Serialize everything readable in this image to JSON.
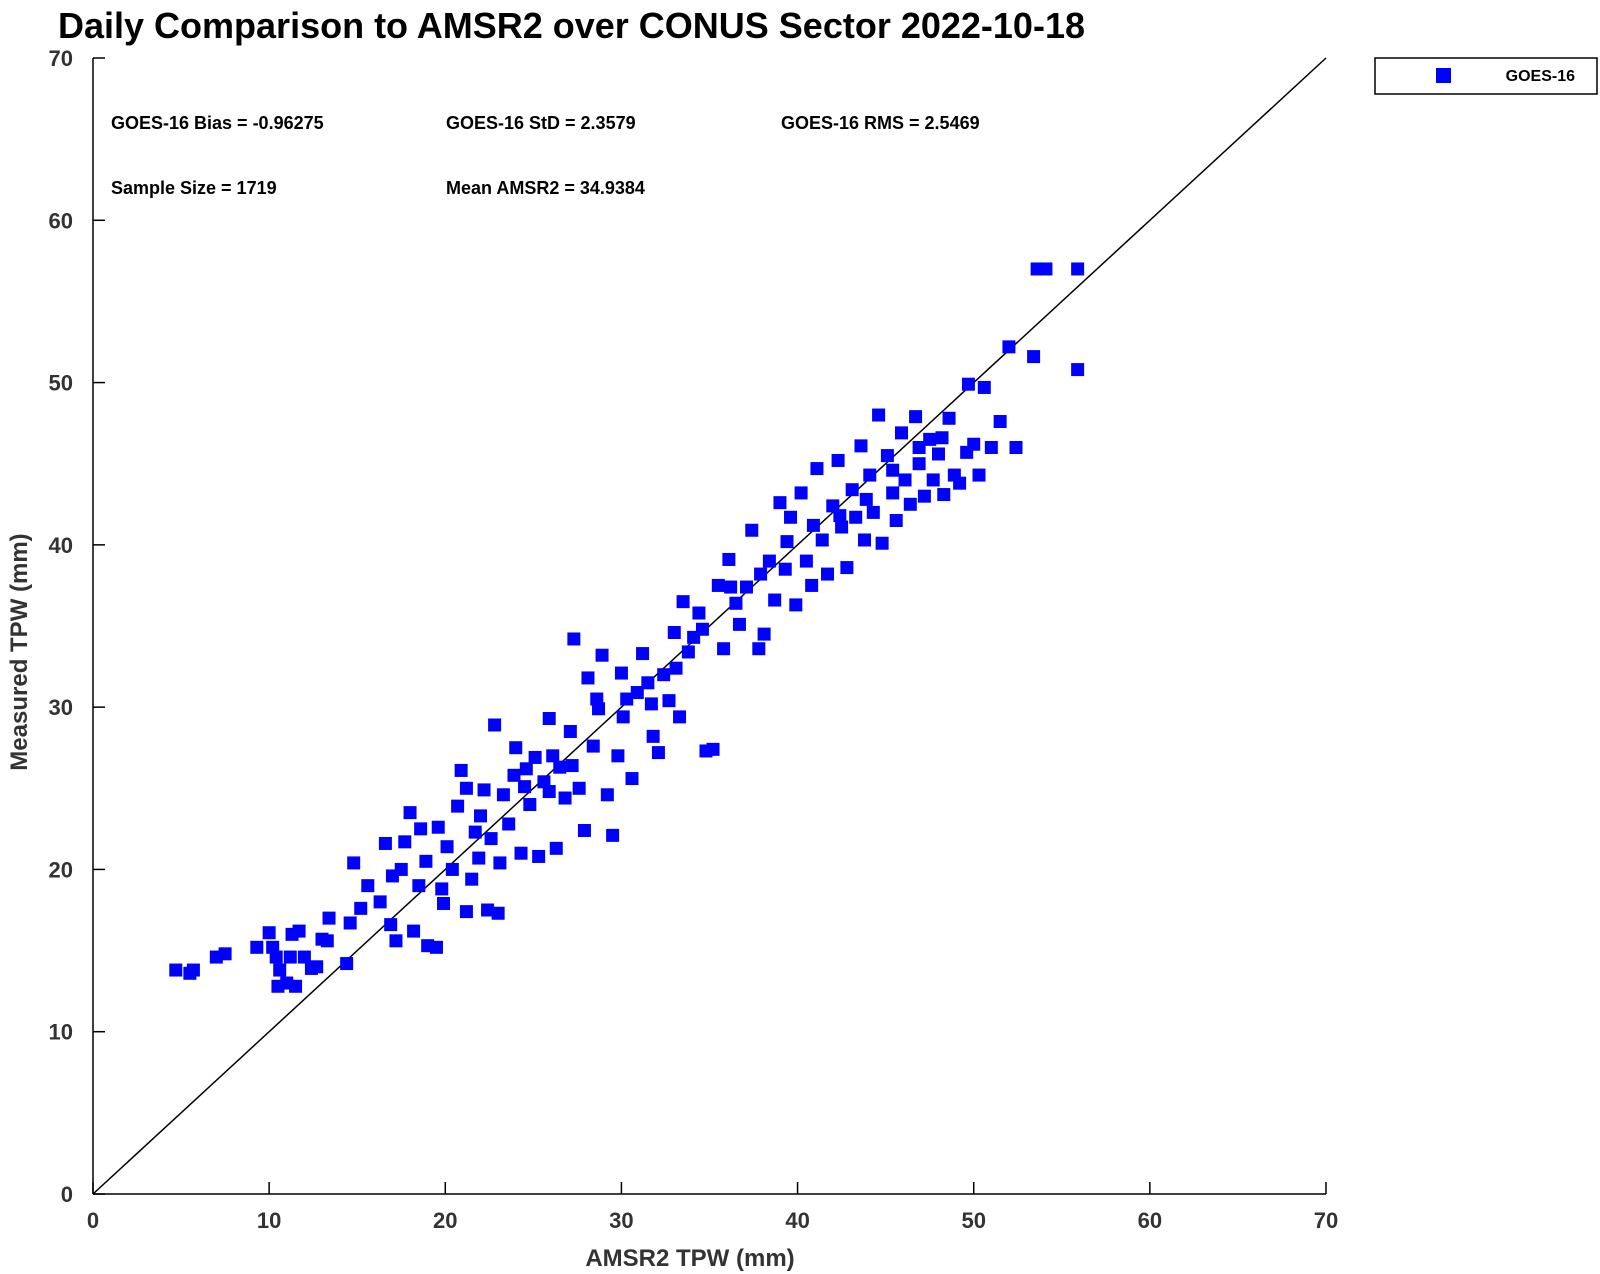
{
  "chart_data": {
    "type": "scatter",
    "title": "Daily Comparison to AMSR2 over CONUS Sector 2022-10-18",
    "xlabel": "AMSR2 TPW (mm)",
    "ylabel": "Measured TPW (mm)",
    "xlim": [
      0,
      70
    ],
    "ylim": [
      0,
      70
    ],
    "xticks": [
      "0",
      "10",
      "20",
      "30",
      "40",
      "50",
      "60",
      "70"
    ],
    "yticks": [
      "0",
      "10",
      "20",
      "30",
      "40",
      "50",
      "60",
      "70"
    ],
    "grid": false,
    "legend_position": "top-right outside",
    "reference_line": {
      "type": "one-to-one",
      "from": [
        0,
        0
      ],
      "to": [
        70,
        70
      ]
    },
    "stats": [
      "GOES-16 Bias = -0.96275",
      "GOES-16 StD = 2.3579",
      "GOES-16 RMS = 2.5469",
      "Sample Size = 1719",
      "Mean AMSR2 = 34.9384"
    ],
    "series": [
      {
        "name": "GOES-16",
        "color": "#0000ff",
        "marker": "square",
        "points": [
          [
            4.7,
            13.8
          ],
          [
            5.5,
            13.6
          ],
          [
            5.7,
            13.8
          ],
          [
            7.0,
            14.6
          ],
          [
            7.5,
            14.8
          ],
          [
            9.3,
            15.2
          ],
          [
            10.0,
            16.1
          ],
          [
            10.2,
            15.2
          ],
          [
            10.4,
            14.6
          ],
          [
            10.6,
            13.8
          ],
          [
            10.5,
            12.8
          ],
          [
            11.0,
            13.0
          ],
          [
            11.2,
            14.6
          ],
          [
            11.3,
            16.0
          ],
          [
            11.5,
            12.8
          ],
          [
            11.7,
            16.2
          ],
          [
            12.0,
            14.6
          ],
          [
            12.4,
            13.9
          ],
          [
            12.7,
            14.0
          ],
          [
            13.0,
            15.7
          ],
          [
            13.3,
            15.6
          ],
          [
            13.4,
            17.0
          ],
          [
            14.4,
            14.2
          ],
          [
            14.6,
            16.7
          ],
          [
            14.8,
            20.4
          ],
          [
            15.2,
            17.6
          ],
          [
            15.6,
            19.0
          ],
          [
            16.3,
            18.0
          ],
          [
            16.6,
            21.6
          ],
          [
            16.9,
            16.6
          ],
          [
            17.2,
            15.6
          ],
          [
            17.5,
            20.0
          ],
          [
            17.7,
            21.7
          ],
          [
            18.0,
            23.5
          ],
          [
            18.2,
            16.2
          ],
          [
            18.5,
            19.0
          ],
          [
            18.9,
            20.5
          ],
          [
            19.0,
            15.3
          ],
          [
            19.5,
            15.2
          ],
          [
            19.6,
            22.6
          ],
          [
            19.8,
            18.8
          ],
          [
            20.1,
            21.4
          ],
          [
            20.4,
            20.0
          ],
          [
            20.7,
            23.9
          ],
          [
            20.9,
            26.1
          ],
          [
            21.2,
            17.4
          ],
          [
            21.5,
            19.4
          ],
          [
            21.7,
            22.3
          ],
          [
            21.9,
            20.7
          ],
          [
            22.2,
            24.9
          ],
          [
            22.4,
            17.5
          ],
          [
            22.6,
            21.9
          ],
          [
            22.8,
            28.9
          ],
          [
            23.0,
            17.3
          ],
          [
            23.3,
            24.6
          ],
          [
            23.6,
            22.8
          ],
          [
            23.9,
            25.8
          ],
          [
            24.0,
            27.5
          ],
          [
            24.3,
            21.0
          ],
          [
            24.5,
            25.1
          ],
          [
            24.8,
            24.0
          ],
          [
            25.1,
            26.9
          ],
          [
            25.3,
            20.8
          ],
          [
            25.6,
            25.4
          ],
          [
            25.9,
            29.3
          ],
          [
            26.1,
            27.0
          ],
          [
            26.3,
            21.3
          ],
          [
            26.5,
            26.3
          ],
          [
            26.8,
            24.4
          ],
          [
            27.1,
            28.5
          ],
          [
            27.3,
            34.2
          ],
          [
            27.6,
            25.0
          ],
          [
            27.9,
            22.4
          ],
          [
            28.1,
            31.8
          ],
          [
            28.4,
            27.6
          ],
          [
            28.7,
            29.9
          ],
          [
            28.9,
            33.2
          ],
          [
            29.2,
            24.6
          ],
          [
            29.5,
            22.1
          ],
          [
            29.8,
            27.0
          ],
          [
            30.0,
            32.1
          ],
          [
            30.3,
            30.5
          ],
          [
            30.6,
            25.6
          ],
          [
            30.9,
            30.9
          ],
          [
            31.2,
            33.3
          ],
          [
            31.5,
            31.5
          ],
          [
            31.8,
            28.2
          ],
          [
            32.1,
            27.2
          ],
          [
            32.4,
            32.0
          ],
          [
            32.7,
            30.4
          ],
          [
            33.0,
            34.6
          ],
          [
            33.3,
            29.4
          ],
          [
            33.5,
            36.5
          ],
          [
            33.8,
            33.4
          ],
          [
            34.1,
            34.3
          ],
          [
            34.4,
            35.8
          ],
          [
            34.8,
            27.3
          ],
          [
            35.2,
            27.4
          ],
          [
            35.5,
            37.5
          ],
          [
            35.8,
            33.6
          ],
          [
            36.1,
            39.1
          ],
          [
            36.5,
            36.4
          ],
          [
            36.7,
            35.1
          ],
          [
            37.1,
            37.4
          ],
          [
            37.4,
            40.9
          ],
          [
            37.8,
            33.6
          ],
          [
            38.1,
            34.5
          ],
          [
            38.4,
            39.0
          ],
          [
            38.7,
            36.6
          ],
          [
            39.0,
            42.6
          ],
          [
            39.3,
            38.5
          ],
          [
            39.6,
            41.7
          ],
          [
            39.9,
            36.3
          ],
          [
            40.2,
            43.2
          ],
          [
            40.5,
            39.0
          ],
          [
            40.8,
            37.5
          ],
          [
            41.1,
            44.7
          ],
          [
            41.4,
            40.3
          ],
          [
            41.7,
            38.2
          ],
          [
            42.0,
            42.4
          ],
          [
            42.3,
            45.2
          ],
          [
            42.5,
            41.1
          ],
          [
            42.8,
            38.6
          ],
          [
            43.1,
            43.4
          ],
          [
            43.3,
            41.7
          ],
          [
            43.6,
            46.1
          ],
          [
            43.8,
            40.3
          ],
          [
            44.1,
            44.3
          ],
          [
            44.3,
            42.0
          ],
          [
            44.6,
            48.0
          ],
          [
            44.8,
            40.1
          ],
          [
            45.1,
            45.5
          ],
          [
            45.4,
            43.2
          ],
          [
            45.6,
            41.5
          ],
          [
            45.9,
            46.9
          ],
          [
            46.1,
            44.0
          ],
          [
            46.4,
            42.5
          ],
          [
            46.7,
            47.9
          ],
          [
            46.9,
            45.0
          ],
          [
            47.2,
            43.0
          ],
          [
            47.5,
            46.5
          ],
          [
            47.7,
            44.0
          ],
          [
            48.0,
            45.6
          ],
          [
            48.3,
            43.1
          ],
          [
            48.6,
            47.8
          ],
          [
            48.9,
            44.3
          ],
          [
            49.2,
            43.8
          ],
          [
            49.6,
            45.7
          ],
          [
            49.7,
            49.9
          ],
          [
            50.0,
            46.2
          ],
          [
            50.3,
            44.3
          ],
          [
            50.6,
            49.7
          ],
          [
            51.0,
            46.0
          ],
          [
            51.5,
            47.6
          ],
          [
            52.0,
            52.2
          ],
          [
            52.4,
            46.0
          ],
          [
            53.4,
            51.6
          ],
          [
            53.6,
            57.0
          ],
          [
            54.1,
            57.0
          ],
          [
            55.9,
            57.0
          ],
          [
            55.9,
            50.8
          ],
          [
            17.0,
            19.6
          ],
          [
            18.6,
            22.5
          ],
          [
            19.9,
            17.9
          ],
          [
            21.2,
            25.0
          ],
          [
            22.0,
            23.3
          ],
          [
            23.1,
            20.4
          ],
          [
            24.6,
            26.2
          ],
          [
            25.9,
            24.8
          ],
          [
            27.2,
            26.4
          ],
          [
            28.6,
            30.5
          ],
          [
            30.1,
            29.4
          ],
          [
            31.7,
            30.2
          ],
          [
            33.1,
            32.4
          ],
          [
            34.6,
            34.8
          ],
          [
            36.2,
            37.4
          ],
          [
            37.9,
            38.2
          ],
          [
            39.4,
            40.2
          ],
          [
            40.9,
            41.2
          ],
          [
            42.4,
            41.8
          ],
          [
            43.9,
            42.8
          ],
          [
            45.4,
            44.6
          ],
          [
            46.9,
            46.0
          ],
          [
            48.2,
            46.6
          ]
        ]
      }
    ]
  }
}
